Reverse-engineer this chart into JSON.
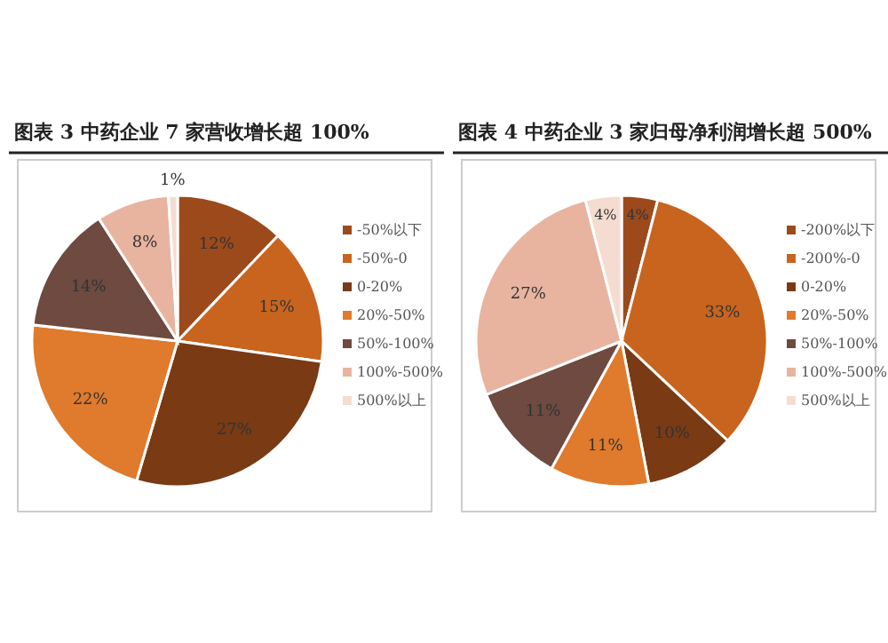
{
  "chart_data": [
    {
      "type": "pie",
      "title": "图表 3 中药企业 7 家营收增长超 100%",
      "categories": [
        "-50%以下",
        "-50%-0",
        "0-20%",
        "20%-50%",
        "50%-100%",
        "100%-500%",
        "500%以上"
      ],
      "values": [
        12,
        15,
        27,
        22,
        14,
        8,
        1
      ],
      "value_labels": [
        "12%",
        "15%",
        "27%",
        "22%",
        "14%",
        "8%",
        "1%"
      ],
      "colors": [
        "#9c4a1c",
        "#c8641e",
        "#7a3a14",
        "#e07a2c",
        "#6e4a40",
        "#e8b4a0",
        "#f5dcd0"
      ],
      "legend": "right"
    },
    {
      "type": "pie",
      "title": "图表 4 中药企业 3 家归母净利润增长超 500%",
      "categories": [
        "-200%以下",
        "-200%-0",
        "0-20%",
        "20%-50%",
        "50%-100%",
        "100%-500%",
        "500%以上"
      ],
      "values": [
        4,
        33,
        10,
        11,
        11,
        27,
        4
      ],
      "value_labels": [
        "4%",
        "33%",
        "10%",
        "11%",
        "11%",
        "27%",
        "4%"
      ],
      "colors": [
        "#9c4a1c",
        "#c8641e",
        "#7a3a14",
        "#e07a2c",
        "#6e4a40",
        "#e8b4a0",
        "#f5dcd0"
      ],
      "legend": "right"
    }
  ]
}
